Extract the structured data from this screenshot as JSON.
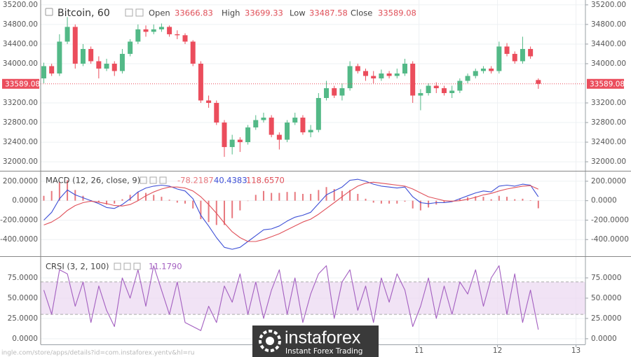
{
  "header": {
    "symbol": "Bitcoin, 60",
    "open_label": "Open",
    "high_label": "High",
    "low_label": "Low",
    "close_label": "Close"
  },
  "watermark": {
    "brand": "instaforex",
    "tagline": "Instant Forex Trading"
  },
  "footer": {
    "url": "ingle.com/store/apps/details?id=com.instaforex.yentv&hl=ru"
  },
  "chart_data": [
    {
      "type": "candlestick",
      "x": [
        6.22,
        6.32,
        6.42,
        6.52,
        6.62,
        6.72,
        6.82,
        6.92,
        7.02,
        7.12,
        7.22,
        7.32,
        7.42,
        7.52,
        7.62,
        7.72,
        7.82,
        7.92,
        8.02,
        8.12,
        8.22,
        8.32,
        8.42,
        8.52,
        8.62,
        8.72,
        8.82,
        8.92,
        9.02,
        9.12,
        9.22,
        9.32,
        9.42,
        9.52,
        9.62,
        9.72,
        9.82,
        9.92,
        10.02,
        10.12,
        10.22,
        10.32,
        10.42,
        10.52,
        10.62,
        10.72,
        10.82,
        10.92,
        11.02,
        11.12,
        11.22,
        11.32,
        11.42,
        11.52,
        11.62,
        11.72,
        11.82,
        11.92,
        12.02,
        12.12,
        12.22,
        12.32,
        12.42,
        12.52
      ],
      "open": [
        33700,
        33950,
        33800,
        34450,
        34750,
        34000,
        34300,
        34050,
        33900,
        34000,
        33850,
        34200,
        34450,
        34700,
        34650,
        34700,
        34750,
        34600,
        34580,
        34450,
        34000,
        33250,
        33200,
        32800,
        32300,
        32450,
        32400,
        32700,
        32850,
        32900,
        32550,
        32450,
        32800,
        32900,
        32600,
        32650,
        33300,
        33500,
        33350,
        33500,
        33950,
        33850,
        33750,
        33700,
        33800,
        33750,
        33800,
        34000,
        33350,
        33400,
        33550,
        33500,
        33400,
        33450,
        33650,
        33750,
        33850,
        33900,
        33850,
        34350,
        34200,
        34050,
        34300,
        33666.83
      ],
      "high": [
        34020,
        34000,
        34600,
        34950,
        34800,
        34400,
        34350,
        34150,
        34100,
        34050,
        34300,
        34500,
        34800,
        34780,
        34800,
        34820,
        34780,
        34680,
        34620,
        34480,
        34050,
        33350,
        33250,
        32850,
        32550,
        32500,
        32750,
        32950,
        33000,
        32950,
        32600,
        32850,
        33000,
        32950,
        32750,
        33400,
        33650,
        33550,
        33600,
        34050,
        34000,
        33900,
        33850,
        33880,
        33850,
        33900,
        34100,
        34050,
        33480,
        33600,
        33620,
        33550,
        33550,
        33700,
        33800,
        33900,
        33950,
        33950,
        34450,
        34420,
        34250,
        34550,
        34350,
        33699.33
      ],
      "low": [
        33600,
        33750,
        33750,
        34400,
        33900,
        33950,
        34000,
        33700,
        33850,
        33750,
        33800,
        34150,
        34400,
        34550,
        34600,
        34650,
        34550,
        34500,
        34400,
        33950,
        33200,
        33100,
        32750,
        32100,
        32150,
        32200,
        32350,
        32650,
        32800,
        32500,
        32250,
        32400,
        32750,
        32550,
        32500,
        32600,
        33250,
        33300,
        33250,
        33450,
        33800,
        33650,
        33600,
        33650,
        33700,
        33700,
        33750,
        33200,
        33050,
        33350,
        33400,
        33350,
        33300,
        33400,
        33600,
        33700,
        33800,
        33800,
        33800,
        34150,
        34000,
        34000,
        34100,
        33487.58
      ],
      "close": [
        33950,
        33800,
        34450,
        34750,
        34000,
        34300,
        34050,
        33900,
        34000,
        33850,
        34200,
        34450,
        34700,
        34650,
        34700,
        34750,
        34600,
        34580,
        34450,
        34000,
        33250,
        33200,
        32800,
        32300,
        32450,
        32400,
        32700,
        32850,
        32900,
        32550,
        32450,
        32800,
        32900,
        32600,
        32650,
        33300,
        33500,
        33350,
        33500,
        33950,
        33850,
        33750,
        33700,
        33800,
        33750,
        33800,
        34000,
        33350,
        33400,
        33550,
        33500,
        33400,
        33450,
        33650,
        33750,
        33850,
        33900,
        33850,
        34350,
        34200,
        34050,
        34300,
        34150,
        33589.08
      ],
      "up_color": "#53b987",
      "down_color": "#eb4d5c",
      "last_price_line": true,
      "xlim": [
        6.18,
        13.12
      ],
      "xticks": [
        11,
        12,
        13
      ],
      "ylim": [
        31830,
        35270
      ],
      "yticks": [
        {
          "value": 32000,
          "label": "32000.00"
        },
        {
          "value": 32400,
          "label": "32400.00"
        },
        {
          "value": 32800,
          "label": "32800.00"
        },
        {
          "value": 33200,
          "label": "33200.00"
        },
        {
          "value": 34000,
          "label": "34000.00"
        },
        {
          "value": 34400,
          "label": "34400.00"
        },
        {
          "value": 34800,
          "label": "34800.00"
        },
        {
          "value": 35200,
          "label": "35200.00"
        }
      ],
      "grid": true
    },
    {
      "type": "macd",
      "title": "MACD (12, 26, close, 9)",
      "series": [
        {
          "style": "bars",
          "color": "#e8797f",
          "values": [
            50,
            100,
            190,
            210,
            110,
            50,
            5,
            -15,
            -40,
            -30,
            15,
            60,
            90,
            80,
            60,
            40,
            10,
            -20,
            -30,
            -80,
            -190,
            -220,
            -250,
            -250,
            -180,
            -100,
            0,
            60,
            100,
            80,
            80,
            90,
            90,
            70,
            70,
            110,
            140,
            120,
            100,
            110,
            70,
            20,
            -20,
            -30,
            -30,
            -30,
            -10,
            -80,
            -100,
            -70,
            -40,
            -20,
            -5,
            20,
            35,
            45,
            40,
            15,
            50,
            40,
            15,
            20,
            5,
            -78.2187
          ]
        },
        {
          "style": "line",
          "color": "#3d4fd6",
          "values": [
            -200,
            -120,
            20,
            110,
            60,
            30,
            0,
            -30,
            -70,
            -80,
            -40,
            20,
            90,
            130,
            150,
            160,
            150,
            120,
            100,
            20,
            -150,
            -260,
            -380,
            -480,
            -500,
            -480,
            -420,
            -360,
            -300,
            -290,
            -260,
            -210,
            -170,
            -150,
            -120,
            -30,
            60,
            100,
            140,
            210,
            220,
            200,
            170,
            150,
            140,
            130,
            140,
            40,
            -20,
            -30,
            -20,
            -20,
            -10,
            20,
            50,
            80,
            100,
            90,
            150,
            160,
            150,
            170,
            160,
            40.4383
          ]
        },
        {
          "style": "line",
          "color": "#e0515a",
          "values": [
            -250,
            -220,
            -170,
            -100,
            -50,
            -20,
            -5,
            -15,
            -30,
            -50,
            -55,
            -40,
            0,
            50,
            90,
            120,
            140,
            140,
            130,
            100,
            40,
            -40,
            -130,
            -230,
            -320,
            -380,
            -420,
            -420,
            -400,
            -370,
            -340,
            -300,
            -260,
            -220,
            -190,
            -140,
            -80,
            -20,
            40,
            100,
            150,
            180,
            190,
            180,
            170,
            160,
            150,
            120,
            80,
            40,
            20,
            0,
            -5,
            0,
            15,
            35,
            60,
            75,
            100,
            120,
            135,
            150,
            155,
            118.657
          ],
          "value_labels": [
            null,
            null,
            null,
            null,
            null,
            null,
            null,
            null,
            null,
            null,
            null,
            null,
            null,
            null,
            null,
            null,
            null,
            null,
            null,
            null,
            null,
            null,
            null,
            null,
            null,
            null,
            null,
            null,
            null,
            null,
            null,
            null,
            null,
            null,
            null,
            null,
            null,
            null,
            null,
            null,
            null,
            null,
            null,
            null,
            null,
            null,
            null,
            null,
            null,
            null,
            null,
            null,
            null,
            null,
            null,
            null,
            null,
            null,
            null,
            null,
            null,
            null,
            null,
            "118.6570"
          ]
        }
      ],
      "ylim": [
        -564,
        293
      ],
      "yticks": [
        {
          "value": -400,
          "label": "-400.0000"
        },
        {
          "value": -200,
          "label": "-200.0000"
        },
        {
          "value": 0,
          "label": "0.0000"
        },
        {
          "value": 200,
          "label": "200.0000"
        }
      ],
      "grid": true
    },
    {
      "type": "line",
      "title": "CRSI (3, 2, 100)",
      "series": [
        {
          "style": "line",
          "color": "#a35fc0",
          "values": [
            60,
            30,
            85,
            80,
            40,
            70,
            20,
            65,
            35,
            15,
            75,
            50,
            85,
            40,
            90,
            60,
            30,
            70,
            20,
            15,
            10,
            40,
            20,
            65,
            45,
            80,
            30,
            70,
            25,
            60,
            85,
            30,
            75,
            20,
            55,
            80,
            90,
            25,
            70,
            85,
            35,
            65,
            20,
            75,
            45,
            80,
            60,
            15,
            40,
            75,
            25,
            65,
            30,
            70,
            55,
            85,
            40,
            75,
            90,
            30,
            80,
            20,
            60,
            11.179
          ],
          "value_labels": [
            null,
            null,
            null,
            null,
            null,
            null,
            null,
            null,
            null,
            null,
            null,
            null,
            null,
            null,
            null,
            null,
            null,
            null,
            null,
            null,
            null,
            null,
            null,
            null,
            null,
            null,
            null,
            null,
            null,
            null,
            null,
            null,
            null,
            null,
            null,
            null,
            null,
            null,
            null,
            null,
            null,
            null,
            null,
            null,
            null,
            null,
            null,
            null,
            null,
            null,
            null,
            null,
            null,
            null,
            null,
            null,
            null,
            null,
            null,
            null,
            null,
            null,
            null,
            "11.1790"
          ]
        }
      ],
      "bands": [
        30,
        70
      ],
      "band_color": "#ecd9f1",
      "ylim": [
        -7,
        100
      ],
      "yticks": [
        {
          "value": 0,
          "label": "0.0000"
        },
        {
          "value": 25,
          "label": "25.0000"
        },
        {
          "value": 50,
          "label": "50.0000"
        },
        {
          "value": 75,
          "label": "75.0000"
        }
      ],
      "grid": true
    }
  ]
}
